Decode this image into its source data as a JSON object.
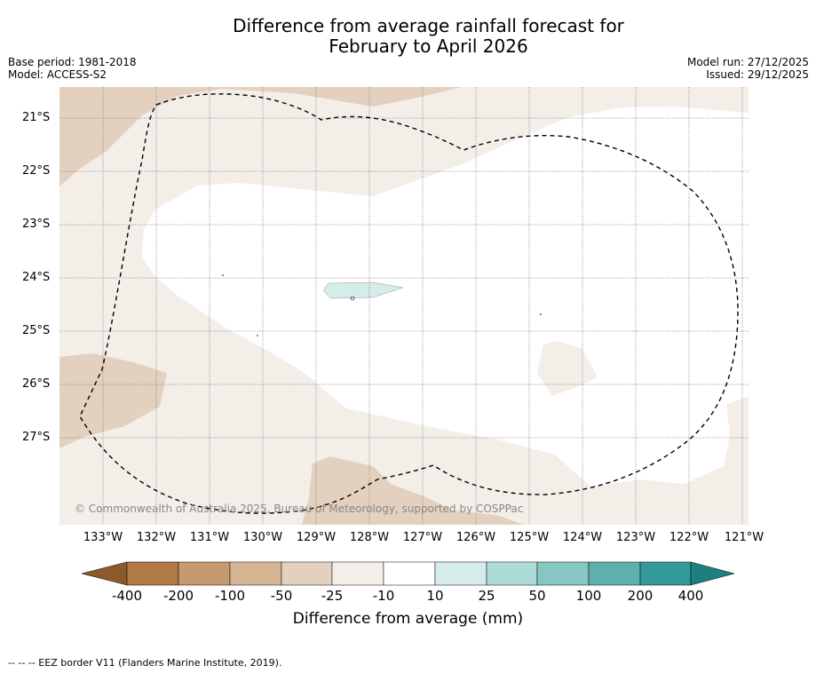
{
  "title": {
    "line1": "Difference from average rainfall forecast for",
    "line2": "February to April 2026"
  },
  "meta": {
    "base_period": "Base period: 1981-2018",
    "model": "Model: ACCESS-S2",
    "model_run": "Model run: 27/12/2025",
    "issued": "Issued: 29/12/2025"
  },
  "axes": {
    "x_ticks": [
      "133°W",
      "132°W",
      "131°W",
      "130°W",
      "129°W",
      "128°W",
      "127°W",
      "126°W",
      "125°W",
      "124°W",
      "123°W",
      "122°W",
      "121°W"
    ],
    "y_ticks": [
      "21°S",
      "22°S",
      "23°S",
      "24°S",
      "25°S",
      "26°S",
      "27°S"
    ]
  },
  "copyright": "© Commonwealth of Australia 2025, Bureau of Meteorology, supported by COSPPac",
  "colorbar": {
    "title": "Difference from average (mm)",
    "labels": [
      "-400",
      "-200",
      "-100",
      "-50",
      "-25",
      "-10",
      "10",
      "25",
      "50",
      "100",
      "200",
      "400"
    ],
    "colors": [
      "#8c5a2a",
      "#b07a45",
      "#c59a6e",
      "#d6b595",
      "#e4d0be",
      "#f4eee9",
      "#ffffff",
      "#d5ecea",
      "#aedbd8",
      "#87c6c2",
      "#5eb0ac",
      "#34999a",
      "#1c7f80"
    ]
  },
  "map_colors": {
    "light_brown": "#f4eee9",
    "mid_brown": "#e4d0be",
    "light_teal": "#d5ecea",
    "grid": "#777777",
    "border": "#000000"
  },
  "footer": "-- -- -- EEZ border V11 (Flanders Marine Institute, 2019)."
}
